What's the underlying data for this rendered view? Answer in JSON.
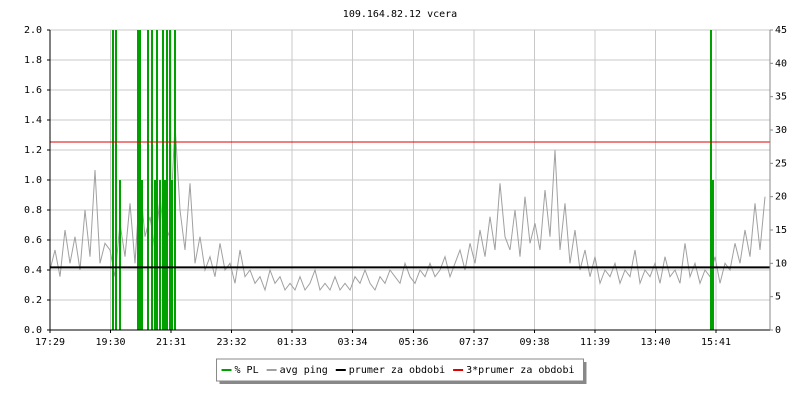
{
  "chart_data": {
    "type": "line",
    "title": "109.164.82.12 vcera",
    "xlim": [
      0,
      1440
    ],
    "xticks": [
      {
        "value": 0,
        "label": "17:29"
      },
      {
        "value": 121,
        "label": "19:30"
      },
      {
        "value": 242,
        "label": "21:31"
      },
      {
        "value": 363,
        "label": "23:32"
      },
      {
        "value": 484,
        "label": "01:33"
      },
      {
        "value": 605,
        "label": "03:34"
      },
      {
        "value": 727,
        "label": "05:36"
      },
      {
        "value": 848,
        "label": "07:37"
      },
      {
        "value": 969,
        "label": "09:38"
      },
      {
        "value": 1090,
        "label": "11:39"
      },
      {
        "value": 1211,
        "label": "13:40"
      },
      {
        "value": 1332,
        "label": "15:41"
      }
    ],
    "ylim": [
      0,
      2
    ],
    "yticks": [
      {
        "value": 0,
        "label": "0.0"
      },
      0.2,
      0.4,
      0.6,
      0.8,
      {
        "value": 1,
        "label": "1.0"
      },
      1.2,
      1.4,
      1.6,
      1.8,
      {
        "value": 2,
        "label": "2.0"
      }
    ],
    "y2lim": [
      0,
      45
    ],
    "y2ticks": [
      0,
      5,
      10,
      15,
      20,
      25,
      30,
      35,
      40,
      45
    ],
    "grid": true,
    "series": [
      {
        "name": "% PL",
        "color": "#00a000",
        "type": "impulse",
        "x": [
          126,
          132,
          140,
          176,
          180,
          184,
          196,
          204,
          210,
          214,
          220,
          226,
          230,
          234,
          240,
          244,
          250,
          1322,
          1326
        ],
        "values": [
          2,
          2,
          1,
          2,
          2,
          1,
          2,
          2,
          1,
          2,
          1,
          2,
          1,
          2,
          2,
          1,
          2,
          2,
          1
        ]
      },
      {
        "name": "avg ping",
        "color": "#a0a0a0",
        "axis": "y2",
        "type": "line",
        "x": [
          0,
          10,
          20,
          30,
          40,
          50,
          60,
          70,
          80,
          90,
          100,
          110,
          120,
          130,
          140,
          150,
          160,
          170,
          180,
          190,
          200,
          210,
          220,
          230,
          240,
          250,
          260,
          270,
          280,
          290,
          300,
          310,
          320,
          330,
          340,
          350,
          360,
          370,
          380,
          390,
          400,
          410,
          420,
          430,
          440,
          450,
          460,
          470,
          480,
          490,
          500,
          510,
          520,
          530,
          540,
          550,
          560,
          570,
          580,
          590,
          600,
          610,
          620,
          630,
          640,
          650,
          660,
          670,
          680,
          690,
          700,
          710,
          720,
          730,
          740,
          750,
          760,
          770,
          780,
          790,
          800,
          810,
          820,
          830,
          840,
          850,
          860,
          870,
          880,
          890,
          900,
          910,
          920,
          930,
          940,
          950,
          960,
          970,
          980,
          990,
          1000,
          1010,
          1020,
          1030,
          1040,
          1050,
          1060,
          1070,
          1080,
          1090,
          1100,
          1110,
          1120,
          1130,
          1140,
          1150,
          1160,
          1170,
          1180,
          1190,
          1200,
          1210,
          1220,
          1230,
          1240,
          1250,
          1260,
          1270,
          1280,
          1290,
          1300,
          1310,
          1320,
          1330,
          1340,
          1350,
          1360,
          1370,
          1380,
          1390,
          1400,
          1410,
          1420,
          1430
        ],
        "values": [
          9,
          12,
          8,
          15,
          10,
          14,
          9,
          18,
          11,
          24,
          10,
          13,
          12,
          8,
          16,
          11,
          19,
          10,
          22,
          14,
          17,
          12,
          20,
          13,
          15,
          31,
          18,
          12,
          22,
          10,
          14,
          9,
          11,
          8,
          13,
          9,
          10,
          7,
          12,
          8,
          9,
          7,
          8,
          6,
          9,
          7,
          8,
          6,
          7,
          6,
          8,
          6,
          7,
          9,
          6,
          7,
          6,
          8,
          6,
          7,
          6,
          8,
          7,
          9,
          7,
          6,
          8,
          7,
          9,
          8,
          7,
          10,
          8,
          7,
          9,
          8,
          10,
          8,
          9,
          11,
          8,
          10,
          12,
          9,
          13,
          10,
          15,
          11,
          17,
          12,
          22,
          14,
          12,
          18,
          11,
          20,
          13,
          16,
          12,
          21,
          14,
          27,
          12,
          19,
          10,
          15,
          9,
          12,
          8,
          11,
          7,
          9,
          8,
          10,
          7,
          9,
          8,
          12,
          7,
          9,
          8,
          10,
          7,
          11,
          8,
          9,
          7,
          13,
          8,
          10,
          7,
          9,
          8,
          11,
          7,
          10,
          9,
          13,
          10,
          15,
          11,
          19,
          12,
          20
        ]
      },
      {
        "name": "prumer za obdobi",
        "color": "#000000",
        "axis": "y2",
        "type": "hline",
        "value": 9.4
      },
      {
        "name": "3*prumer za obdobi",
        "color": "#e00000",
        "axis": "y2",
        "type": "hline",
        "value": 28.2
      }
    ]
  }
}
